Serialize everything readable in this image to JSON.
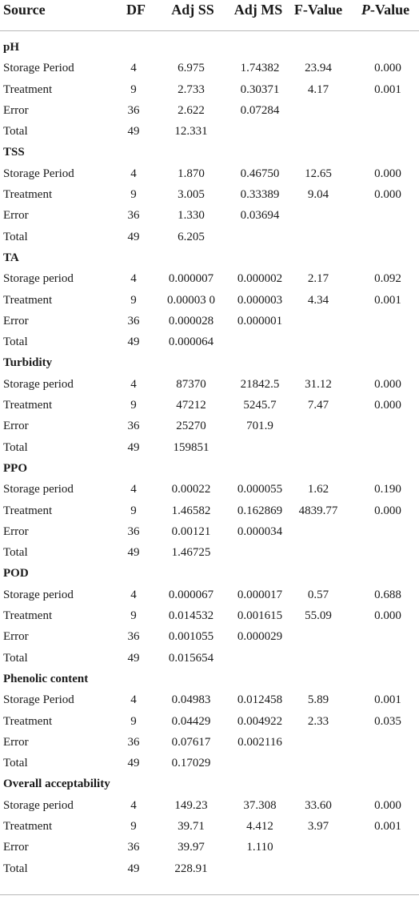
{
  "table": {
    "headers": {
      "source": "Source",
      "df": "DF",
      "adj_ss": "Adj SS",
      "adj_ms": "Adj MS",
      "f_value": "F-Value",
      "p_letter": "P",
      "p_suffix": "-Value"
    },
    "sections": [
      {
        "title": "pH",
        "rows": [
          {
            "source": "Storage Period",
            "df": "4",
            "adj_ss": "6.975",
            "adj_ms": "1.74382",
            "f": "23.94",
            "p": "0.000"
          },
          {
            "source": "Treatment",
            "df": "9",
            "adj_ss": "2.733",
            "adj_ms": "0.30371",
            "f": "4.17",
            "p": "0.001"
          },
          {
            "source": "Error",
            "df": "36",
            "adj_ss": "2.622",
            "adj_ms": "0.07284",
            "f": "",
            "p": ""
          },
          {
            "source": "Total",
            "df": "49",
            "adj_ss": "12.331",
            "adj_ms": "",
            "f": "",
            "p": ""
          }
        ]
      },
      {
        "title": "TSS",
        "rows": [
          {
            "source": "Storage Period",
            "df": "4",
            "adj_ss": "1.870",
            "adj_ms": "0.46750",
            "f": "12.65",
            "p": "0.000"
          },
          {
            "source": "Treatment",
            "df": "9",
            "adj_ss": "3.005",
            "adj_ms": "0.33389",
            "f": "9.04",
            "p": "0.000"
          },
          {
            "source": "Error",
            "df": "36",
            "adj_ss": "1.330",
            "adj_ms": "0.03694",
            "f": "",
            "p": ""
          },
          {
            "source": "Total",
            "df": "49",
            "adj_ss": "6.205",
            "adj_ms": "",
            "f": "",
            "p": ""
          }
        ]
      },
      {
        "title": "TA",
        "rows": [
          {
            "source": "Storage period",
            "df": "4",
            "adj_ss": "0.000007",
            "adj_ms": "0.000002",
            "f": "2.17",
            "p": "0.092"
          },
          {
            "source": "Treatment",
            "df": "9",
            "adj_ss": "0.00003 0",
            "adj_ms": "0.000003",
            "f": "4.34",
            "p": "0.001"
          },
          {
            "source": "Error",
            "df": "36",
            "adj_ss": "0.000028",
            "adj_ms": "0.000001",
            "f": "",
            "p": ""
          },
          {
            "source": "Total",
            "df": "49",
            "adj_ss": "0.000064",
            "adj_ms": "",
            "f": "",
            "p": ""
          }
        ]
      },
      {
        "title": "Turbidity",
        "rows": [
          {
            "source": "Storage period",
            "df": "4",
            "adj_ss": "87370",
            "adj_ms": "21842.5",
            "f": "31.12",
            "p": "0.000"
          },
          {
            "source": "Treatment",
            "df": "9",
            "adj_ss": "47212",
            "adj_ms": "5245.7",
            "f": "7.47",
            "p": "0.000"
          },
          {
            "source": "Error",
            "df": "36",
            "adj_ss": "25270",
            "adj_ms": "701.9",
            "f": "",
            "p": ""
          },
          {
            "source": "Total",
            "df": "49",
            "adj_ss": "159851",
            "adj_ms": "",
            "f": "",
            "p": ""
          }
        ]
      },
      {
        "title": "PPO",
        "rows": [
          {
            "source": "Storage period",
            "df": "4",
            "adj_ss": "0.00022",
            "adj_ms": "0.000055",
            "f": "1.62",
            "p": "0.190"
          },
          {
            "source": "Treatment",
            "df": "9",
            "adj_ss": "1.46582",
            "adj_ms": "0.162869",
            "f": "4839.77",
            "p": "0.000"
          },
          {
            "source": "Error",
            "df": "36",
            "adj_ss": "0.00121",
            "adj_ms": "0.000034",
            "f": "",
            "p": ""
          },
          {
            "source": "Total",
            "df": "49",
            "adj_ss": "1.46725",
            "adj_ms": "",
            "f": "",
            "p": ""
          }
        ]
      },
      {
        "title": "POD",
        "rows": [
          {
            "source": "Storage period",
            "df": "4",
            "adj_ss": "0.000067",
            "adj_ms": "0.000017",
            "f": "0.57",
            "p": "0.688"
          },
          {
            "source": "Treatment",
            "df": "9",
            "adj_ss": "0.014532",
            "adj_ms": "0.001615",
            "f": "55.09",
            "p": "0.000"
          },
          {
            "source": "Error",
            "df": "36",
            "adj_ss": "0.001055",
            "adj_ms": "0.000029",
            "f": "",
            "p": ""
          },
          {
            "source": "Total",
            "df": "49",
            "adj_ss": "0.015654",
            "adj_ms": "",
            "f": "",
            "p": ""
          }
        ]
      },
      {
        "title": "Phenolic content",
        "rows": [
          {
            "source": "Storage Period",
            "df": "4",
            "adj_ss": "0.04983",
            "adj_ms": "0.012458",
            "f": "5.89",
            "p": "0.001"
          },
          {
            "source": "Treatment",
            "df": "9",
            "adj_ss": "0.04429",
            "adj_ms": "0.004922",
            "f": "2.33",
            "p": "0.035"
          },
          {
            "source": "Error",
            "df": "36",
            "adj_ss": "0.07617",
            "adj_ms": "0.002116",
            "f": "",
            "p": ""
          },
          {
            "source": "Total",
            "df": "49",
            "adj_ss": "0.17029",
            "adj_ms": "",
            "f": "",
            "p": ""
          }
        ]
      },
      {
        "title": "Overall acceptability",
        "rows": [
          {
            "source": "Storage period",
            "df": "4",
            "adj_ss": "149.23",
            "adj_ms": "37.308",
            "f": "33.60",
            "p": "0.000"
          },
          {
            "source": "Treatment",
            "df": "9",
            "adj_ss": "39.71",
            "adj_ms": "4.412",
            "f": "3.97",
            "p": "0.001"
          },
          {
            "source": "Error",
            "df": "36",
            "adj_ss": "39.97",
            "adj_ms": "1.110",
            "f": "",
            "p": ""
          },
          {
            "source": "Total",
            "df": "49",
            "adj_ss": "228.91",
            "adj_ms": "",
            "f": "",
            "p": ""
          }
        ]
      }
    ]
  }
}
